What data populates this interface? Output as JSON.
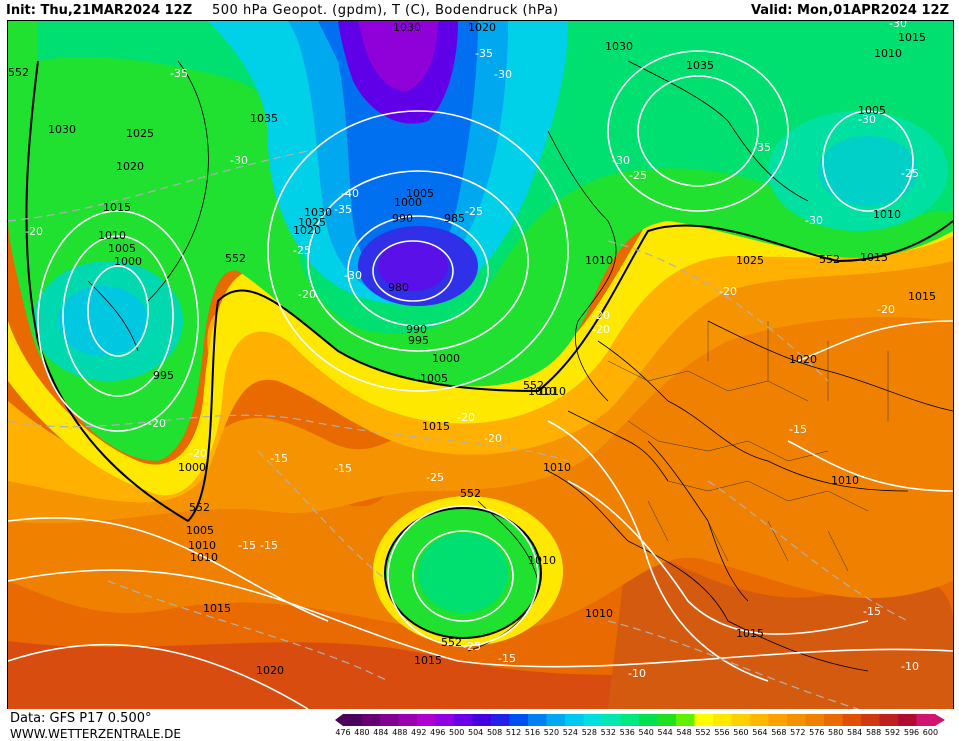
{
  "header": {
    "init": "Init: Thu,21MAR2024 12Z",
    "title": "500 hPa Geopot. (gpdm), T (C), Bodendruck (hPa)",
    "valid": "Valid: Mon,01APR2024 12Z"
  },
  "footer": {
    "data": "Data: GFS P17 0.500°",
    "site": "WWW.WETTERZENTRALE.DE"
  },
  "legend": {
    "ticks": [
      "476",
      "480",
      "484",
      "488",
      "492",
      "496",
      "500",
      "504",
      "508",
      "512",
      "516",
      "520",
      "524",
      "528",
      "532",
      "536",
      "540",
      "544",
      "548",
      "552",
      "556",
      "560",
      "564",
      "568",
      "572",
      "576",
      "580",
      "584",
      "588",
      "592",
      "596",
      "600"
    ],
    "colors": [
      "#4b0059",
      "#650072",
      "#800090",
      "#9a00b0",
      "#b000d0",
      "#9000e0",
      "#6a00e8",
      "#4400e0",
      "#2020e8",
      "#0050f0",
      "#0080f0",
      "#00a8f0",
      "#00c8f0",
      "#00e0e0",
      "#00e8b0",
      "#00e880",
      "#00e050",
      "#20e020",
      "#60f000",
      "#ffff00",
      "#ffe800",
      "#ffd000",
      "#ffb800",
      "#ffa000",
      "#f59000",
      "#f08000",
      "#e86a00",
      "#e05000",
      "#d03810",
      "#c02020",
      "#b00c30",
      "#d01470"
    ]
  },
  "map": {
    "pressure_labels": [
      "1030",
      "1025",
      "1020",
      "1015",
      "1010",
      "1005",
      "1000",
      "995",
      "1030",
      "1035",
      "1030",
      "1025",
      "1020",
      "1005",
      "1000",
      "990",
      "985",
      "980",
      "990",
      "995",
      "1000",
      "1005",
      "1010",
      "1015",
      "1010",
      "1005",
      "1010",
      "1015",
      "1020",
      "1015",
      "1010",
      "1030",
      "1035",
      "1010",
      "1005",
      "1010",
      "1025",
      "1015",
      "1015",
      "1020",
      "1010",
      "1010",
      "1015",
      "1015",
      "1020",
      "1010",
      "1010",
      "1000",
      "1010"
    ],
    "temp_labels": [
      "-35",
      "-30",
      "-20",
      "-20",
      "-15",
      "-15",
      "-20",
      "-20",
      "-25",
      "-30",
      "-40",
      "-35",
      "-25",
      "-30",
      "-35",
      "-30",
      "-30",
      "-35",
      "-30",
      "-25",
      "-25",
      "-30",
      "-20",
      "-20",
      "-20",
      "-20",
      "-20",
      "-25",
      "-15",
      "-15",
      "-15",
      "-15",
      "-10",
      "-10",
      "-25",
      "-15",
      "-20"
    ],
    "geopot_labels": [
      "552",
      "552",
      "552",
      "552",
      "552",
      "552",
      "552"
    ]
  }
}
